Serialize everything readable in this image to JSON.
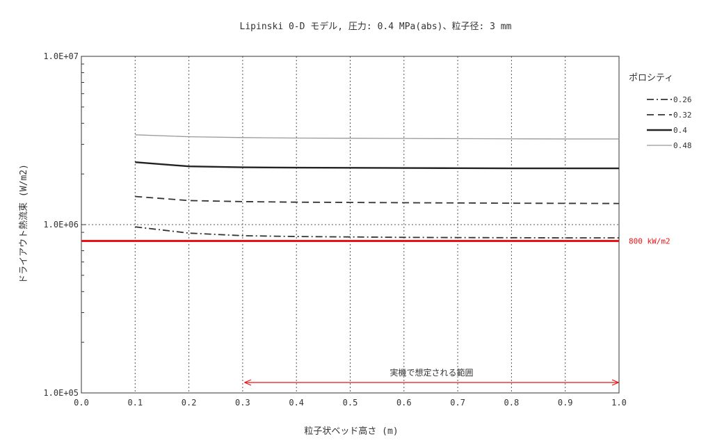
{
  "chart_data": {
    "type": "line",
    "title": "Lipinski 0-D モデル, 圧力: 0.4 MPa(abs)、粒子径: 3 mm",
    "xlabel": "粒子状ベッド高さ (m)",
    "ylabel": "ドライアウト熱流束 (W/m2)",
    "x_ticks": [
      "0.0",
      "0.1",
      "0.2",
      "0.3",
      "0.4",
      "0.5",
      "0.6",
      "0.7",
      "0.8",
      "0.9",
      "1.0"
    ],
    "y_ticks": [
      "1.0E+05",
      "1.0E+06",
      "1.0E+07"
    ],
    "xlim": [
      0,
      1.0
    ],
    "ylim": [
      100000,
      10000000
    ],
    "y_scale": "log",
    "grid": "vertical dotted lines at each x tick, horizontal dotted line at 1.0E+06",
    "legend": {
      "title": "ポロシティ",
      "placement": "right"
    },
    "x": [
      0.1,
      0.2,
      0.3,
      0.4,
      0.5,
      0.6,
      0.7,
      0.8,
      0.9,
      1.0
    ],
    "series": [
      {
        "name": "0.26",
        "style": "dash-dot",
        "color": "#333333",
        "values": [
          970000,
          890000,
          860000,
          850000,
          845000,
          840000,
          838000,
          836000,
          835000,
          835000
        ]
      },
      {
        "name": "0.32",
        "style": "dashed",
        "color": "#333333",
        "values": [
          1470000,
          1390000,
          1370000,
          1360000,
          1355000,
          1350000,
          1345000,
          1340000,
          1338000,
          1335000
        ]
      },
      {
        "name": "0.4",
        "style": "solid",
        "color": "#222222",
        "values": [
          2350000,
          2220000,
          2190000,
          2180000,
          2175000,
          2170000,
          2165000,
          2160000,
          2160000,
          2160000
        ]
      },
      {
        "name": "0.48",
        "style": "solid-thin",
        "color": "#999999",
        "values": [
          3420000,
          3330000,
          3290000,
          3270000,
          3260000,
          3250000,
          3240000,
          3235000,
          3230000,
          3230000
        ]
      }
    ],
    "reference_line": {
      "value": 800000,
      "label": "800 kW/m2",
      "color": "#ee1111"
    },
    "range_annotation": {
      "x_start": 0.3,
      "x_end": 1.0,
      "label": "実機で想定される範囲",
      "color": "#ee1111"
    }
  }
}
